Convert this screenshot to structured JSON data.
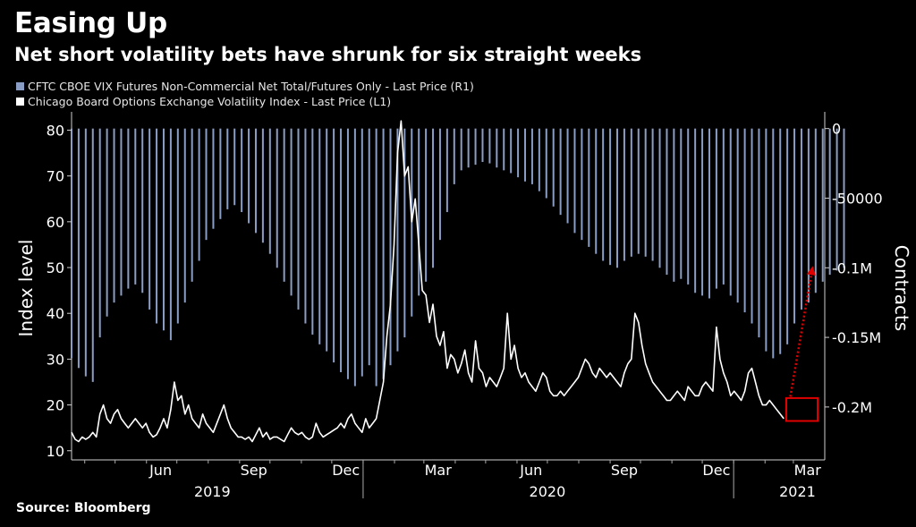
{
  "header": {
    "title": "Easing Up",
    "subtitle": "Net short volatility bets have shrunk for six straight weeks"
  },
  "legend": [
    {
      "label": "CFTC CBOE VIX Futures Non-Commercial Net Total/Futures Only - Last Price (R1)",
      "color": "#8a9dc4"
    },
    {
      "label": "Chicago Board Options Exchange Volatility Index - Last Price (L1)",
      "color": "#ffffff"
    }
  ],
  "source": "Source: Bloomberg",
  "chart_data": {
    "type": "bar+line",
    "ylabel": "Index level",
    "y2label": "Contracts",
    "ylim": [
      8,
      84
    ],
    "yticks": [
      10,
      20,
      30,
      40,
      50,
      60,
      70,
      80
    ],
    "y2lim": [
      -238000,
      12000
    ],
    "y2ticks": [
      0,
      -50000,
      -100000,
      -150000,
      -200000
    ],
    "y2ticklabels": [
      "0",
      "-50000",
      "-0.1M",
      "-0.15M",
      "-0.2M"
    ],
    "x_month_labels": [
      "Jun",
      "Sep",
      "Dec",
      "Mar",
      "Jun",
      "Sep",
      "Dec",
      "Mar"
    ],
    "x_year_labels": [
      "2019",
      "2020",
      "2021"
    ],
    "series": [
      {
        "name": "CFTC CBOE VIX Futures Non-Commercial Net Total/Futures Only - Last Price (R1)",
        "axis": "right",
        "style": "bar",
        "color": "#8a9dc4",
        "x_start": "2019-03-19",
        "x_step_days": 7,
        "values": [
          -165000,
          -172000,
          -178000,
          -182000,
          -150000,
          -135000,
          -125000,
          -120000,
          -115000,
          -112000,
          -118000,
          -130000,
          -140000,
          -145000,
          -152000,
          -140000,
          -125000,
          -110000,
          -95000,
          -80000,
          -72000,
          -65000,
          -58000,
          -55000,
          -60000,
          -68000,
          -75000,
          -82000,
          -90000,
          -100000,
          -110000,
          -120000,
          -130000,
          -140000,
          -148000,
          -155000,
          -160000,
          -168000,
          -175000,
          -180000,
          -185000,
          -178000,
          -170000,
          -185000,
          -180000,
          -170000,
          -160000,
          -150000,
          -135000,
          -120000,
          -110000,
          -100000,
          -80000,
          -60000,
          -40000,
          -30000,
          -28000,
          -26000,
          -24000,
          -25000,
          -28000,
          -30000,
          -32000,
          -35000,
          -38000,
          -40000,
          -45000,
          -50000,
          -56000,
          -62000,
          -68000,
          -75000,
          -80000,
          -85000,
          -90000,
          -95000,
          -98000,
          -100000,
          -95000,
          -92000,
          -90000,
          -92000,
          -95000,
          -100000,
          -105000,
          -110000,
          -108000,
          -112000,
          -118000,
          -120000,
          -122000,
          -115000,
          -112000,
          -120000,
          -125000,
          -132000,
          -140000,
          -150000,
          -160000,
          -165000,
          -162000,
          -155000,
          -140000,
          -130000,
          -125000,
          -118000,
          -110000,
          -105000,
          -102000,
          -100000
        ]
      },
      {
        "name": "Chicago Board Options Exchange Volatility Index - Last Price (L1)",
        "axis": "left",
        "style": "line",
        "color": "#ffffff",
        "x_start": "2019-03-19",
        "x_step_days": 3.5,
        "values": [
          14,
          12.5,
          12,
          13,
          12.5,
          13,
          14,
          13,
          18,
          20,
          17,
          16,
          18,
          19,
          17,
          16,
          15,
          16,
          17,
          16,
          15,
          16,
          14,
          13,
          13.5,
          15,
          17,
          15,
          19,
          25,
          21,
          22,
          18,
          20,
          17,
          16,
          15,
          18,
          16,
          15,
          14,
          16,
          18,
          20,
          17,
          15,
          14,
          13,
          13,
          12.5,
          13,
          12,
          13.5,
          15,
          13,
          14,
          12.5,
          13,
          13,
          12.5,
          12,
          13.5,
          15,
          14,
          13.5,
          14,
          13,
          12.5,
          13,
          16,
          14,
          13,
          13.5,
          14,
          14.5,
          15,
          16,
          15,
          17,
          18,
          16,
          15,
          14,
          17,
          15,
          16,
          17,
          21,
          25,
          35,
          42,
          55,
          75,
          82,
          70,
          72,
          60,
          65,
          55,
          45,
          44,
          38,
          42,
          35,
          33,
          36,
          28,
          31,
          30,
          27,
          29,
          32,
          27,
          25,
          34,
          28,
          27,
          24,
          26,
          25,
          24,
          26,
          28,
          40,
          30,
          33,
          28,
          26,
          27,
          25,
          24,
          23,
          25,
          27,
          26,
          23,
          22,
          22,
          23,
          22,
          23,
          24,
          25,
          26,
          28,
          30,
          29,
          27,
          26,
          28,
          27,
          26,
          27,
          26,
          25,
          24,
          27,
          29,
          30,
          40,
          38,
          33,
          29,
          27,
          25,
          24,
          23,
          22,
          21,
          21,
          22,
          23,
          22,
          21,
          24,
          23,
          22,
          22,
          24,
          25,
          24,
          23,
          37,
          30,
          27,
          25,
          22,
          23,
          22,
          21,
          23,
          27,
          28,
          25,
          22,
          20,
          20,
          21,
          20,
          19,
          18,
          17
        ]
      }
    ],
    "annotations": {
      "highlight_box": {
        "x_from": "2021-02-22",
        "x_to": "2021-03-25",
        "y_from": 16.5,
        "y_to": 21.5,
        "color": "#e00000"
      },
      "dotted_arrow": {
        "color": "#e00000",
        "direction": "up-right"
      }
    }
  }
}
